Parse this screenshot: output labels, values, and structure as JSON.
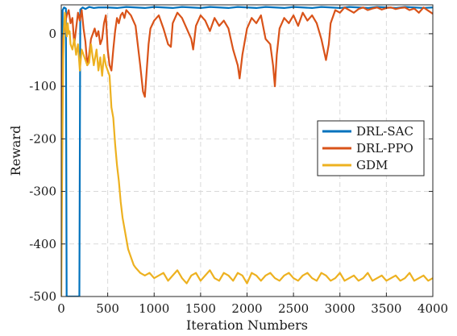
{
  "chart_data": {
    "type": "line",
    "title": "",
    "xlabel": "Iteration Numbers",
    "ylabel": "Reward",
    "xlim": [
      0,
      4000
    ],
    "ylim": [
      -500,
      55
    ],
    "xticks": [
      0,
      500,
      1000,
      1500,
      2000,
      2500,
      3000,
      3500,
      4000
    ],
    "yticks": [
      -500,
      -400,
      -300,
      -200,
      -100,
      0
    ],
    "grid": true,
    "legend_position": "center-right",
    "series": [
      {
        "name": "DRL-SAC",
        "color": "#0072BD",
        "points": [
          [
            0,
            -250
          ],
          [
            15,
            45
          ],
          [
            30,
            50
          ],
          [
            50,
            48
          ],
          [
            58,
            -500
          ],
          [
            80,
            -500
          ],
          [
            100,
            -500
          ],
          [
            130,
            -500
          ],
          [
            160,
            -500
          ],
          [
            185,
            -500
          ],
          [
            195,
            -500
          ],
          [
            205,
            46
          ],
          [
            230,
            50
          ],
          [
            260,
            47
          ],
          [
            300,
            51
          ],
          [
            350,
            49
          ],
          [
            400,
            50
          ],
          [
            500,
            50
          ],
          [
            600,
            49
          ],
          [
            700,
            51
          ],
          [
            800,
            50
          ],
          [
            900,
            49
          ],
          [
            1000,
            51
          ],
          [
            1100,
            50
          ],
          [
            1200,
            49
          ],
          [
            1300,
            51
          ],
          [
            1400,
            50
          ],
          [
            1500,
            49
          ],
          [
            1600,
            51
          ],
          [
            1700,
            50
          ],
          [
            1800,
            49
          ],
          [
            1900,
            51
          ],
          [
            2000,
            50
          ],
          [
            2100,
            49
          ],
          [
            2200,
            51
          ],
          [
            2300,
            50
          ],
          [
            2400,
            49
          ],
          [
            2500,
            51
          ],
          [
            2600,
            50
          ],
          [
            2700,
            49
          ],
          [
            2800,
            51
          ],
          [
            2900,
            50
          ],
          [
            3000,
            49
          ],
          [
            3100,
            51
          ],
          [
            3200,
            50
          ],
          [
            3300,
            49
          ],
          [
            3400,
            51
          ],
          [
            3500,
            50
          ],
          [
            3600,
            49
          ],
          [
            3700,
            51
          ],
          [
            3800,
            50
          ],
          [
            3900,
            49
          ],
          [
            4000,
            50
          ]
        ]
      },
      {
        "name": "DRL-PPO",
        "color": "#D95319",
        "points": [
          [
            0,
            -245
          ],
          [
            20,
            -10
          ],
          [
            40,
            20
          ],
          [
            60,
            35
          ],
          [
            80,
            45
          ],
          [
            100,
            20
          ],
          [
            120,
            30
          ],
          [
            140,
            -20
          ],
          [
            160,
            10
          ],
          [
            180,
            40
          ],
          [
            200,
            25
          ],
          [
            220,
            45
          ],
          [
            240,
            10
          ],
          [
            260,
            -15
          ],
          [
            280,
            -60
          ],
          [
            300,
            -40
          ],
          [
            320,
            -10
          ],
          [
            340,
            0
          ],
          [
            360,
            10
          ],
          [
            380,
            -5
          ],
          [
            400,
            5
          ],
          [
            420,
            -20
          ],
          [
            440,
            -10
          ],
          [
            460,
            20
          ],
          [
            480,
            35
          ],
          [
            500,
            -30
          ],
          [
            520,
            -60
          ],
          [
            540,
            -70
          ],
          [
            560,
            -30
          ],
          [
            580,
            5
          ],
          [
            600,
            30
          ],
          [
            620,
            20
          ],
          [
            640,
            35
          ],
          [
            660,
            40
          ],
          [
            680,
            30
          ],
          [
            700,
            45
          ],
          [
            750,
            35
          ],
          [
            800,
            15
          ],
          [
            850,
            -60
          ],
          [
            880,
            -110
          ],
          [
            900,
            -120
          ],
          [
            920,
            -70
          ],
          [
            940,
            -20
          ],
          [
            960,
            10
          ],
          [
            1000,
            25
          ],
          [
            1050,
            35
          ],
          [
            1100,
            10
          ],
          [
            1150,
            -20
          ],
          [
            1180,
            -25
          ],
          [
            1200,
            20
          ],
          [
            1250,
            40
          ],
          [
            1300,
            30
          ],
          [
            1350,
            10
          ],
          [
            1400,
            -10
          ],
          [
            1420,
            -30
          ],
          [
            1450,
            15
          ],
          [
            1500,
            35
          ],
          [
            1550,
            25
          ],
          [
            1600,
            5
          ],
          [
            1650,
            30
          ],
          [
            1700,
            15
          ],
          [
            1750,
            25
          ],
          [
            1800,
            10
          ],
          [
            1850,
            -30
          ],
          [
            1900,
            -60
          ],
          [
            1920,
            -85
          ],
          [
            1950,
            -40
          ],
          [
            2000,
            10
          ],
          [
            2050,
            30
          ],
          [
            2100,
            20
          ],
          [
            2150,
            35
          ],
          [
            2200,
            -10
          ],
          [
            2250,
            -20
          ],
          [
            2280,
            -60
          ],
          [
            2300,
            -100
          ],
          [
            2320,
            -40
          ],
          [
            2350,
            10
          ],
          [
            2400,
            30
          ],
          [
            2450,
            20
          ],
          [
            2500,
            35
          ],
          [
            2550,
            15
          ],
          [
            2600,
            40
          ],
          [
            2650,
            25
          ],
          [
            2700,
            35
          ],
          [
            2750,
            20
          ],
          [
            2800,
            -10
          ],
          [
            2850,
            -50
          ],
          [
            2880,
            -20
          ],
          [
            2900,
            20
          ],
          [
            2950,
            45
          ],
          [
            3000,
            40
          ],
          [
            3050,
            50
          ],
          [
            3100,
            45
          ],
          [
            3150,
            40
          ],
          [
            3200,
            47
          ],
          [
            3250,
            50
          ],
          [
            3300,
            45
          ],
          [
            3350,
            48
          ],
          [
            3400,
            50
          ],
          [
            3450,
            46
          ],
          [
            3500,
            49
          ],
          [
            3550,
            50
          ],
          [
            3600,
            47
          ],
          [
            3650,
            49
          ],
          [
            3700,
            50
          ],
          [
            3750,
            45
          ],
          [
            3800,
            48
          ],
          [
            3850,
            40
          ],
          [
            3900,
            50
          ],
          [
            3950,
            44
          ],
          [
            4000,
            38
          ]
        ]
      },
      {
        "name": "GDM",
        "color": "#EDB120",
        "points": [
          [
            0,
            -500
          ],
          [
            10,
            -250
          ],
          [
            20,
            -50
          ],
          [
            30,
            15
          ],
          [
            40,
            40
          ],
          [
            50,
            10
          ],
          [
            60,
            -5
          ],
          [
            70,
            20
          ],
          [
            80,
            0
          ],
          [
            90,
            5
          ],
          [
            100,
            -20
          ],
          [
            120,
            -30
          ],
          [
            140,
            -10
          ],
          [
            160,
            -40
          ],
          [
            180,
            -20
          ],
          [
            200,
            -70
          ],
          [
            220,
            -30
          ],
          [
            250,
            -45
          ],
          [
            280,
            -60
          ],
          [
            300,
            -55
          ],
          [
            320,
            -20
          ],
          [
            350,
            -60
          ],
          [
            380,
            -30
          ],
          [
            400,
            -70
          ],
          [
            420,
            -45
          ],
          [
            440,
            -80
          ],
          [
            460,
            -40
          ],
          [
            480,
            -60
          ],
          [
            500,
            -70
          ],
          [
            520,
            -80
          ],
          [
            540,
            -140
          ],
          [
            560,
            -160
          ],
          [
            580,
            -210
          ],
          [
            600,
            -250
          ],
          [
            620,
            -280
          ],
          [
            640,
            -320
          ],
          [
            660,
            -350
          ],
          [
            680,
            -370
          ],
          [
            700,
            -390
          ],
          [
            720,
            -410
          ],
          [
            740,
            -420
          ],
          [
            760,
            -430
          ],
          [
            780,
            -440
          ],
          [
            800,
            -445
          ],
          [
            850,
            -455
          ],
          [
            900,
            -460
          ],
          [
            950,
            -455
          ],
          [
            1000,
            -465
          ],
          [
            1050,
            -460
          ],
          [
            1100,
            -455
          ],
          [
            1150,
            -470
          ],
          [
            1200,
            -460
          ],
          [
            1250,
            -450
          ],
          [
            1300,
            -465
          ],
          [
            1350,
            -475
          ],
          [
            1400,
            -460
          ],
          [
            1450,
            -455
          ],
          [
            1500,
            -470
          ],
          [
            1550,
            -460
          ],
          [
            1600,
            -450
          ],
          [
            1650,
            -465
          ],
          [
            1700,
            -470
          ],
          [
            1750,
            -455
          ],
          [
            1800,
            -460
          ],
          [
            1850,
            -470
          ],
          [
            1900,
            -455
          ],
          [
            1950,
            -460
          ],
          [
            2000,
            -475
          ],
          [
            2050,
            -455
          ],
          [
            2100,
            -460
          ],
          [
            2150,
            -470
          ],
          [
            2200,
            -460
          ],
          [
            2250,
            -455
          ],
          [
            2300,
            -465
          ],
          [
            2350,
            -470
          ],
          [
            2400,
            -460
          ],
          [
            2450,
            -455
          ],
          [
            2500,
            -465
          ],
          [
            2550,
            -470
          ],
          [
            2600,
            -460
          ],
          [
            2650,
            -455
          ],
          [
            2700,
            -465
          ],
          [
            2750,
            -470
          ],
          [
            2800,
            -455
          ],
          [
            2850,
            -460
          ],
          [
            2900,
            -470
          ],
          [
            2950,
            -465
          ],
          [
            3000,
            -455
          ],
          [
            3050,
            -470
          ],
          [
            3100,
            -465
          ],
          [
            3150,
            -460
          ],
          [
            3200,
            -470
          ],
          [
            3250,
            -465
          ],
          [
            3300,
            -455
          ],
          [
            3350,
            -470
          ],
          [
            3400,
            -465
          ],
          [
            3450,
            -460
          ],
          [
            3500,
            -470
          ],
          [
            3550,
            -465
          ],
          [
            3600,
            -460
          ],
          [
            3650,
            -470
          ],
          [
            3700,
            -465
          ],
          [
            3750,
            -455
          ],
          [
            3800,
            -470
          ],
          [
            3850,
            -465
          ],
          [
            3900,
            -460
          ],
          [
            3950,
            -470
          ],
          [
            4000,
            -465
          ]
        ]
      }
    ]
  }
}
